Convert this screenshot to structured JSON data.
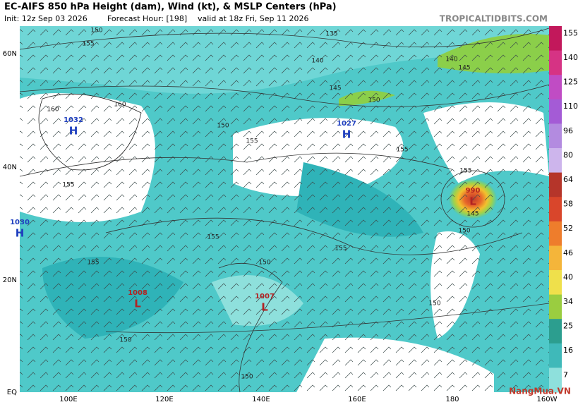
{
  "header": {
    "title": "EC-AIFS 850 hPa Height (dam), Wind (kt), & MSLP Centers (hPa)",
    "init": "Init: 12z Sep 03 2026",
    "forecast_hour": "Forecast Hour: [198]",
    "valid": "valid at 18z Fri, Sep 11 2026",
    "source": "TROPICALTIDBITS.COM"
  },
  "map": {
    "lat_labels": [
      "60N",
      "40N",
      "20N",
      "EQ"
    ],
    "lon_labels": [
      "100E",
      "120E",
      "140E",
      "160E",
      "180",
      "160W"
    ],
    "pressure_centers": [
      {
        "value": "1032",
        "type": "H"
      },
      {
        "value": "1027",
        "type": "H"
      },
      {
        "value": "1030",
        "type": "H"
      },
      {
        "value": "1008",
        "type": "L"
      },
      {
        "value": "1007",
        "type": "L"
      },
      {
        "value": "990",
        "type": "L"
      }
    ],
    "contour_labels": [
      "150",
      "155",
      "160",
      "160",
      "150",
      "155",
      "135",
      "140",
      "145",
      "150",
      "155",
      "140",
      "145",
      "155",
      "145",
      "150",
      "155",
      "150",
      "155",
      "155",
      "150",
      "150",
      "150",
      "155"
    ]
  },
  "colorbar": {
    "labels": [
      "155",
      "140",
      "125",
      "110",
      "96",
      "80",
      "64",
      "58",
      "52",
      "46",
      "40",
      "34",
      "25",
      "16",
      "7"
    ]
  },
  "watermark": "NangMua.VN"
}
